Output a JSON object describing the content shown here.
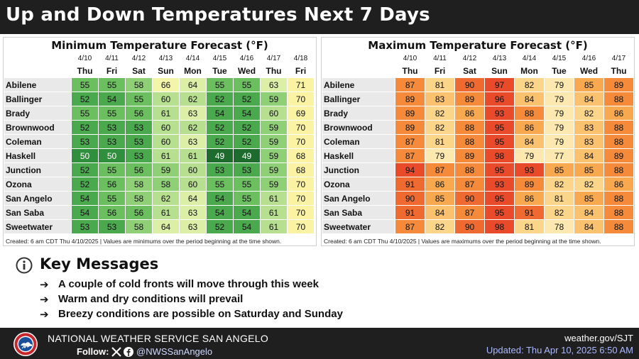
{
  "title": "Up and Down Temperatures Next 7 Days",
  "min_panel": {
    "title": "Minimum Temperature Forecast (°F)",
    "dates": [
      "4/10",
      "4/11",
      "4/12",
      "4/13",
      "4/14",
      "4/15",
      "4/16",
      "4/17",
      "4/18"
    ],
    "days": [
      "Thu",
      "Fri",
      "Sat",
      "Sun",
      "Mon",
      "Tue",
      "Wed",
      "Thu",
      "Fri"
    ],
    "rows": [
      {
        "city": "Abilene",
        "values": [
          55,
          55,
          58,
          66,
          64,
          55,
          55,
          63,
          71
        ]
      },
      {
        "city": "Ballinger",
        "values": [
          52,
          54,
          55,
          60,
          62,
          52,
          52,
          59,
          70
        ]
      },
      {
        "city": "Brady",
        "values": [
          55,
          55,
          56,
          61,
          63,
          54,
          54,
          60,
          69
        ]
      },
      {
        "city": "Brownwood",
        "values": [
          52,
          53,
          53,
          60,
          62,
          52,
          52,
          59,
          70
        ]
      },
      {
        "city": "Coleman",
        "values": [
          53,
          53,
          53,
          60,
          63,
          52,
          52,
          59,
          70
        ]
      },
      {
        "city": "Haskell",
        "values": [
          50,
          50,
          53,
          61,
          61,
          49,
          49,
          59,
          68
        ]
      },
      {
        "city": "Junction",
        "values": [
          52,
          55,
          56,
          59,
          60,
          53,
          53,
          59,
          68
        ]
      },
      {
        "city": "Ozona",
        "values": [
          52,
          56,
          58,
          58,
          60,
          55,
          55,
          59,
          70
        ]
      },
      {
        "city": "San Angelo",
        "values": [
          54,
          55,
          58,
          62,
          64,
          54,
          55,
          61,
          70
        ]
      },
      {
        "city": "San Saba",
        "values": [
          54,
          56,
          56,
          61,
          63,
          54,
          54,
          61,
          70
        ]
      },
      {
        "city": "Sweetwater",
        "values": [
          53,
          53,
          58,
          64,
          63,
          52,
          54,
          61,
          70
        ]
      }
    ],
    "footnote": "Created: 6 am CDT Thu 4/10/2025  |  Values are minimums over the period beginning at the time shown."
  },
  "max_panel": {
    "title": "Maximum Temperature Forecast (°F)",
    "dates": [
      "4/10",
      "4/11",
      "4/12",
      "4/13",
      "4/14",
      "4/15",
      "4/16",
      "4/17"
    ],
    "days": [
      "Thu",
      "Fri",
      "Sat",
      "Sun",
      "Mon",
      "Tue",
      "Wed",
      "Thu"
    ],
    "rows": [
      {
        "city": "Abilene",
        "values": [
          87,
          81,
          90,
          97,
          82,
          79,
          85,
          89
        ]
      },
      {
        "city": "Ballinger",
        "values": [
          89,
          83,
          89,
          96,
          84,
          79,
          84,
          88
        ]
      },
      {
        "city": "Brady",
        "values": [
          89,
          82,
          86,
          93,
          88,
          79,
          82,
          86
        ]
      },
      {
        "city": "Brownwood",
        "values": [
          89,
          82,
          88,
          95,
          86,
          79,
          83,
          88
        ]
      },
      {
        "city": "Coleman",
        "values": [
          87,
          81,
          88,
          95,
          84,
          79,
          83,
          88
        ]
      },
      {
        "city": "Haskell",
        "values": [
          87,
          79,
          89,
          98,
          79,
          77,
          84,
          89
        ]
      },
      {
        "city": "Junction",
        "values": [
          94,
          87,
          88,
          95,
          93,
          85,
          85,
          88
        ]
      },
      {
        "city": "Ozona",
        "values": [
          91,
          86,
          87,
          93,
          89,
          82,
          82,
          86
        ]
      },
      {
        "city": "San Angelo",
        "values": [
          90,
          85,
          90,
          95,
          86,
          81,
          85,
          88
        ]
      },
      {
        "city": "San Saba",
        "values": [
          91,
          84,
          87,
          95,
          91,
          82,
          84,
          88
        ]
      },
      {
        "city": "Sweetwater",
        "values": [
          87,
          82,
          90,
          98,
          81,
          78,
          84,
          88
        ]
      }
    ],
    "footnote": "Created: 6 am CDT Thu 4/10/2025  |  Values are maximums over the period beginning at the time shown."
  },
  "key_messages": {
    "icon": "info-icon",
    "title": "Key Messages",
    "items": [
      "A couple of cold fronts will move through this week",
      "Warm and dry conditions will prevail",
      "Breezy conditions are possible on Saturday and Sunday"
    ]
  },
  "footer": {
    "office": "NATIONAL WEATHER SERVICE SAN ANGELO",
    "follow": "Follow:",
    "social_icons": [
      "x-icon",
      "facebook-icon"
    ],
    "handle": "@NWSSanAngelo",
    "site": "weather.gov/SJT",
    "updated": "Updated: Thu Apr 10, 2025 6:50 AM"
  },
  "colors": {
    "header_bg": "#1f1f1f",
    "min_palette": [
      "#1e6b2e",
      "#2f8f3c",
      "#4aa84d",
      "#6bbf5f",
      "#8fd077",
      "#b6e08f",
      "#dcefa6",
      "#f3f5a8",
      "#fbf3a3"
    ],
    "max_palette": [
      "#fde9b0",
      "#fbd58a",
      "#fac16e",
      "#f8a94f",
      "#f58a3b",
      "#ef6a30",
      "#e84a2a"
    ]
  }
}
